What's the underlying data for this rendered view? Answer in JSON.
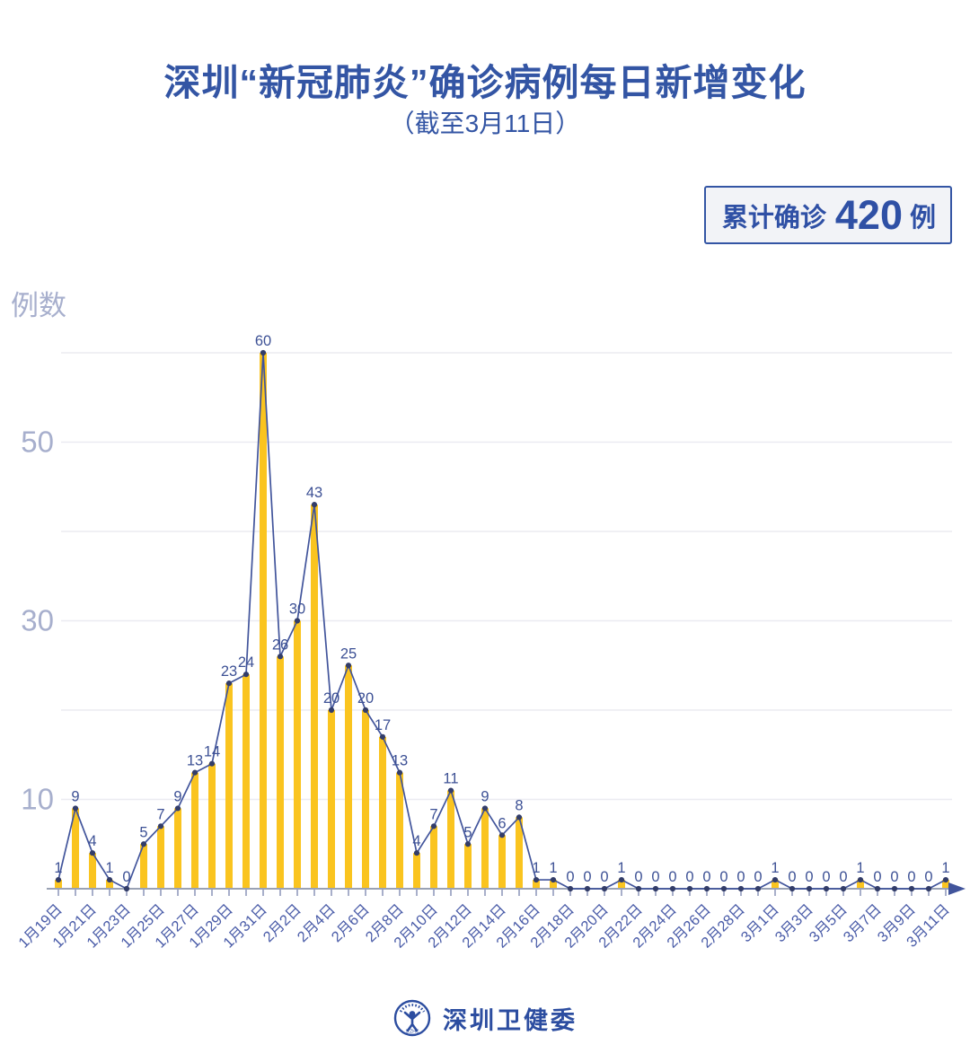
{
  "header": {
    "title": "深圳“新冠肺炎”确诊病例每日新增变化",
    "subtitle": "（截至3月11日）"
  },
  "badge": {
    "prefix": "累计确诊",
    "value": "420",
    "suffix": "例"
  },
  "footer": {
    "org": "深圳卫健委"
  },
  "colors": {
    "accent_blue": "#3355A4",
    "bar_yellow": "#FAC41F",
    "line_navy": "#41549B",
    "marker_navy": "#333D69",
    "value_label": "#3D5195",
    "y_axis_label": "#A7AFCD",
    "gridline": "#EBEBF1",
    "x_axis_line": "#9AA2B4",
    "x_tick": "#8A94B8",
    "x_tick_label": "#4A5CA8",
    "badge_bg": "#F2F3F7",
    "footer_blue": "#2C4DA0"
  },
  "chart_data": {
    "type": "bar",
    "note": "combo of yellow daily bars with navy connecting line and point markers",
    "title": "深圳“新冠肺炎”确诊病例每日新增变化（截至3月11日）",
    "ylabel": "例数",
    "xlabel": "",
    "ylim": [
      0,
      63
    ],
    "grid": "horizontal gridlines at every 10",
    "gridlines": [
      10,
      20,
      30,
      40,
      50,
      60
    ],
    "yticks_labeled": [
      10,
      30,
      50
    ],
    "x_label_every": 2,
    "categories": [
      "1月19日",
      "1月20日",
      "1月21日",
      "1月22日",
      "1月23日",
      "1月24日",
      "1月25日",
      "1月26日",
      "1月27日",
      "1月28日",
      "1月29日",
      "1月30日",
      "1月31日",
      "2月1日",
      "2月2日",
      "2月3日",
      "2月4日",
      "2月5日",
      "2月6日",
      "2月7日",
      "2月8日",
      "2月9日",
      "2月10日",
      "2月11日",
      "2月12日",
      "2月13日",
      "2月14日",
      "2月15日",
      "2月16日",
      "2月17日",
      "2月18日",
      "2月19日",
      "2月20日",
      "2月21日",
      "2月22日",
      "2月23日",
      "2月24日",
      "2月25日",
      "2月26日",
      "2月27日",
      "2月28日",
      "2月29日",
      "3月1日",
      "3月2日",
      "3月3日",
      "3月4日",
      "3月5日",
      "3月6日",
      "3月7日",
      "3月8日",
      "3月9日",
      "3月10日",
      "3月11日"
    ],
    "values": [
      1,
      9,
      4,
      1,
      0,
      5,
      7,
      9,
      13,
      14,
      23,
      24,
      60,
      26,
      30,
      43,
      20,
      25,
      20,
      17,
      13,
      4,
      7,
      11,
      5,
      9,
      6,
      8,
      1,
      1,
      0,
      0,
      0,
      1,
      0,
      0,
      0,
      0,
      0,
      0,
      0,
      0,
      1,
      0,
      0,
      0,
      0,
      1,
      0,
      0,
      0,
      0,
      1
    ],
    "cumulative_total": 420
  }
}
